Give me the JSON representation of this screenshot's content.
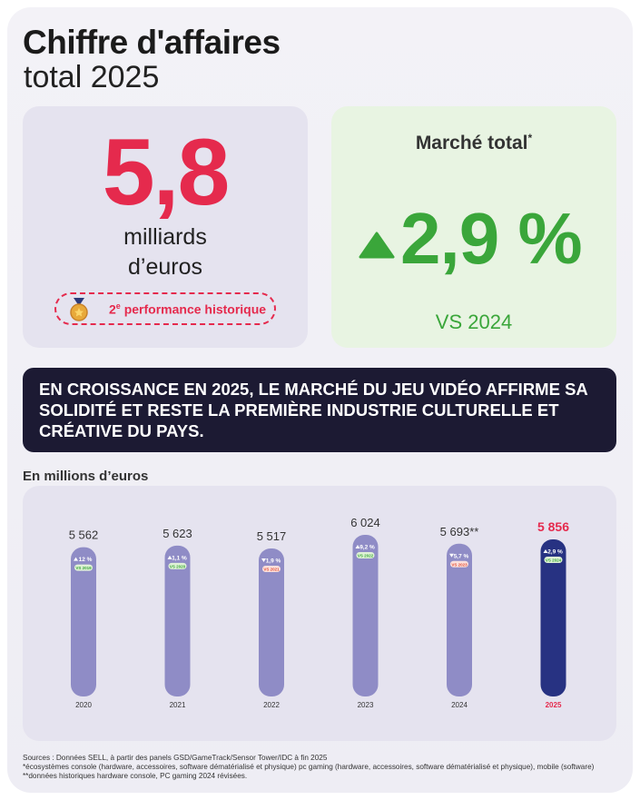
{
  "header": {
    "title": "Chiffre d'affaires",
    "subtitle": "total 2025"
  },
  "revenue": {
    "value": "5,8",
    "unit_line1": "milliards",
    "unit_line2": "d’euros",
    "badge": {
      "rank": "2",
      "rank_suffix": "e",
      "text": "performance historique"
    }
  },
  "market": {
    "title": "Marché total",
    "title_note": "*",
    "change": "2,9 %",
    "comparison": "VS 2024"
  },
  "banner": "EN CROISSANCE EN 2025, LE MARCHÉ DU JEU VIDÉO AFFIRME SA SOLIDITÉ ET RESTE LA PREMIÈRE INDUSTRIE CULTURELLE ET CRÉATIVE DU PAYS.",
  "chart_data": {
    "type": "bar",
    "subtitle": "En millions d’euros",
    "categories": [
      "2020",
      "2021",
      "2022",
      "2023",
      "2024",
      "2025"
    ],
    "values": [
      5562,
      5623,
      5517,
      6024,
      5693,
      5856
    ],
    "value_labels": [
      "5 562",
      "5 623",
      "5 517",
      "6 024",
      "5 693**",
      "5 856"
    ],
    "colors": [
      "#8f8cc6",
      "#8f8cc6",
      "#8f8cc6",
      "#8f8cc6",
      "#8f8cc6",
      "#273282"
    ],
    "label_colors": [
      "#333333",
      "#333333",
      "#333333",
      "#333333",
      "#333333",
      "#e52a4d"
    ],
    "changes": [
      {
        "direction": "up",
        "label": "12 %",
        "vs": "VS 2019"
      },
      {
        "direction": "up",
        "label": "1,1 %",
        "vs": "VS 2020"
      },
      {
        "direction": "down",
        "label": "1,9 %",
        "vs": "VS 2021"
      },
      {
        "direction": "up",
        "label": "9,2 %",
        "vs": "VS 2022"
      },
      {
        "direction": "down",
        "label": "5,7 %",
        "vs": "VS 2023"
      },
      {
        "direction": "up",
        "label": "2,9 %",
        "vs": "VS 2024"
      }
    ]
  },
  "footnotes": [
    "Sources : Données SELL, à partir des panels GSD/GameTrack/Sensor Tower/IDC à fin 2025",
    "*écosystèmes console (hardware, accessoires, software dématérialisé et physique) pc gaming (hardware, accessoires, software dématérialisé et physique), mobile (software)",
    "**données historiques hardware console, PC gaming 2024 révisées."
  ]
}
